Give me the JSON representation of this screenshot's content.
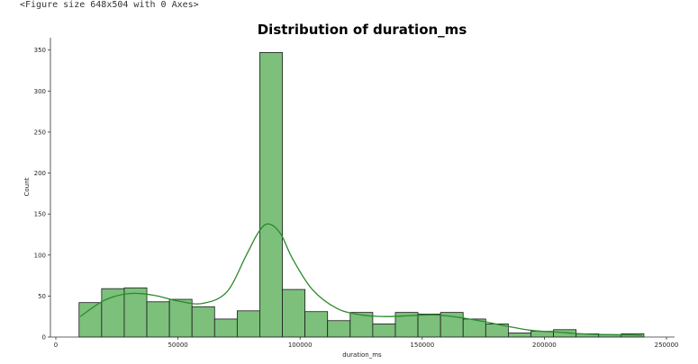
{
  "output_text": "<Figure size 648x504 with 0 Axes>",
  "chart_data": {
    "type": "bar",
    "title": "Distribution of duration_ms",
    "xlabel": "duration_ms",
    "ylabel": "Count",
    "xlim": [
      0,
      250000
    ],
    "ylim": [
      0,
      365
    ],
    "xticks": [
      0,
      50000,
      100000,
      150000,
      200000,
      250000
    ],
    "yticks": [
      0,
      50,
      100,
      150,
      200,
      250,
      300,
      350
    ],
    "grid": false,
    "bar_color": "#7cc07c",
    "bar_edge_color": "#1a1a1a",
    "kde_color": "#2a8a2a",
    "bins": [
      {
        "start": 9500,
        "end": 18750,
        "count": 42
      },
      {
        "start": 18750,
        "end": 28000,
        "count": 59
      },
      {
        "start": 28000,
        "end": 37250,
        "count": 60
      },
      {
        "start": 37250,
        "end": 46500,
        "count": 43
      },
      {
        "start": 46500,
        "end": 55750,
        "count": 46
      },
      {
        "start": 55750,
        "end": 65000,
        "count": 37
      },
      {
        "start": 65000,
        "end": 74250,
        "count": 22
      },
      {
        "start": 74250,
        "end": 83500,
        "count": 32
      },
      {
        "start": 83500,
        "end": 92750,
        "count": 347
      },
      {
        "start": 92750,
        "end": 102000,
        "count": 58
      },
      {
        "start": 102000,
        "end": 111250,
        "count": 31
      },
      {
        "start": 111250,
        "end": 120500,
        "count": 20
      },
      {
        "start": 120500,
        "end": 129750,
        "count": 30
      },
      {
        "start": 129750,
        "end": 139000,
        "count": 16
      },
      {
        "start": 139000,
        "end": 148250,
        "count": 30
      },
      {
        "start": 148250,
        "end": 157500,
        "count": 28
      },
      {
        "start": 157500,
        "end": 166750,
        "count": 30
      },
      {
        "start": 166750,
        "end": 176000,
        "count": 22
      },
      {
        "start": 176000,
        "end": 185250,
        "count": 16
      },
      {
        "start": 185250,
        "end": 194500,
        "count": 5
      },
      {
        "start": 194500,
        "end": 203750,
        "count": 7
      },
      {
        "start": 203750,
        "end": 213000,
        "count": 9
      },
      {
        "start": 213000,
        "end": 222250,
        "count": 4
      },
      {
        "start": 222250,
        "end": 231500,
        "count": 3
      },
      {
        "start": 231500,
        "end": 240750,
        "count": 4
      }
    ],
    "kde": [
      {
        "x": 10000,
        "y": 25
      },
      {
        "x": 20000,
        "y": 45
      },
      {
        "x": 30000,
        "y": 53
      },
      {
        "x": 40000,
        "y": 51
      },
      {
        "x": 50000,
        "y": 44
      },
      {
        "x": 60000,
        "y": 41
      },
      {
        "x": 70000,
        "y": 55
      },
      {
        "x": 78000,
        "y": 100
      },
      {
        "x": 83000,
        "y": 128
      },
      {
        "x": 87000,
        "y": 138
      },
      {
        "x": 92000,
        "y": 126
      },
      {
        "x": 97000,
        "y": 95
      },
      {
        "x": 105000,
        "y": 58
      },
      {
        "x": 115000,
        "y": 35
      },
      {
        "x": 125000,
        "y": 27
      },
      {
        "x": 135000,
        "y": 25
      },
      {
        "x": 145000,
        "y": 26
      },
      {
        "x": 155000,
        "y": 27
      },
      {
        "x": 165000,
        "y": 24
      },
      {
        "x": 175000,
        "y": 19
      },
      {
        "x": 185000,
        "y": 13
      },
      {
        "x": 195000,
        "y": 8
      },
      {
        "x": 205000,
        "y": 6
      },
      {
        "x": 215000,
        "y": 4
      },
      {
        "x": 225000,
        "y": 3
      },
      {
        "x": 235000,
        "y": 2.5
      },
      {
        "x": 240000,
        "y": 2
      }
    ]
  }
}
